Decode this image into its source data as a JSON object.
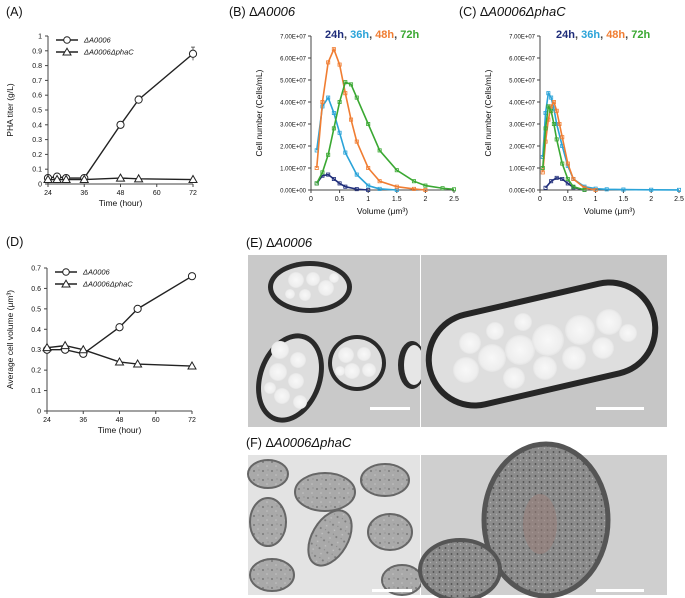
{
  "panels": {
    "A": {
      "label": "(A)"
    },
    "B": {
      "label": "(B)",
      "title_prefix": "Δ",
      "title_main": "A0006"
    },
    "C": {
      "label": "(C)",
      "title_prefix": "Δ",
      "title_main": "A0006ΔphaC"
    },
    "D": {
      "label": "(D)"
    },
    "E": {
      "label": "(E)",
      "title_prefix": "Δ",
      "title_main": "A0006"
    },
    "F": {
      "label": "(F)",
      "title_prefix": "Δ",
      "title_main": "A0006ΔphaC"
    }
  },
  "timepoints_legend": [
    {
      "label": "24h",
      "color": "#1f2d7a"
    },
    {
      "label": "36h",
      "color": "#2aa3d8"
    },
    {
      "label": "48h",
      "color": "#f07d32"
    },
    {
      "label": "72h",
      "color": "#3aa832"
    }
  ],
  "chart_data": [
    {
      "id": "A",
      "type": "line",
      "xlabel": "Time (hour)",
      "ylabel": "PHA titer (g/L)",
      "xlim": [
        24,
        72
      ],
      "ylim": [
        0,
        1
      ],
      "xticks": [
        24,
        36,
        48,
        60,
        72
      ],
      "yticks": [
        0,
        0.1,
        0.2,
        0.3,
        0.4,
        0.5,
        0.6,
        0.7,
        0.8,
        0.9,
        1
      ],
      "legend_position": "top-left",
      "series": [
        {
          "name": "ΔA0006",
          "marker": "circle",
          "x": [
            24,
            27,
            30,
            36,
            48,
            54,
            72
          ],
          "y": [
            0.04,
            0.05,
            0.04,
            0.04,
            0.4,
            0.57,
            0.88
          ],
          "err": [
            0,
            0,
            0,
            0,
            0.01,
            0.025,
            0.045
          ]
        },
        {
          "name": "ΔA0006ΔphaC",
          "marker": "triangle",
          "x": [
            24,
            27,
            30,
            36,
            48,
            54,
            72
          ],
          "y": [
            0.03,
            0.03,
            0.03,
            0.03,
            0.04,
            0.035,
            0.03
          ],
          "err": [
            0,
            0,
            0,
            0,
            0,
            0,
            0
          ]
        }
      ]
    },
    {
      "id": "B",
      "type": "line",
      "xlabel": "Volume (μm³)",
      "ylabel": "Cell number (Cells/mL)",
      "xlim": [
        0,
        2.5
      ],
      "ylim": [
        0,
        70000000
      ],
      "xticks": [
        0,
        0.5,
        1,
        1.5,
        2,
        2.5
      ],
      "yticks": [
        "0.00E+00",
        "1.00E+07",
        "2.00E+07",
        "3.00E+07",
        "4.00E+07",
        "5.00E+07",
        "6.00E+07",
        "7.00E+07"
      ],
      "series": [
        {
          "name": "24h",
          "x": [
            0.1,
            0.2,
            0.3,
            0.4,
            0.5,
            0.6,
            0.8,
            1.0
          ],
          "y": [
            3000000,
            6500000,
            7000000,
            5000000,
            3000000,
            1500000,
            400000,
            0
          ]
        },
        {
          "name": "36h",
          "x": [
            0.1,
            0.2,
            0.3,
            0.4,
            0.5,
            0.6,
            0.8,
            1.0,
            1.2,
            1.5
          ],
          "y": [
            18000000,
            38000000,
            42000000,
            35000000,
            26000000,
            17000000,
            7000000,
            2000000,
            500000,
            0
          ]
        },
        {
          "name": "48h",
          "x": [
            0.1,
            0.2,
            0.3,
            0.4,
            0.5,
            0.6,
            0.7,
            0.8,
            1.0,
            1.2,
            1.5,
            1.8,
            2.0
          ],
          "y": [
            10000000,
            40000000,
            58000000,
            64000000,
            57000000,
            44000000,
            32000000,
            22000000,
            10000000,
            4000000,
            1500000,
            500000,
            0
          ]
        },
        {
          "name": "72h",
          "x": [
            0.1,
            0.2,
            0.3,
            0.4,
            0.5,
            0.6,
            0.7,
            0.8,
            1.0,
            1.2,
            1.5,
            1.8,
            2.0,
            2.3,
            2.5
          ],
          "y": [
            3000000,
            8000000,
            16000000,
            28000000,
            40000000,
            49000000,
            48000000,
            42000000,
            30000000,
            18000000,
            9000000,
            4000000,
            2000000,
            800000,
            300000
          ]
        }
      ]
    },
    {
      "id": "C",
      "type": "line",
      "xlabel": "Volume (μm³)",
      "ylabel": "Cell number (Cells/mL)",
      "xlim": [
        0,
        2.5
      ],
      "ylim": [
        0,
        70000000
      ],
      "xticks": [
        0,
        0.5,
        1,
        1.5,
        2,
        2.5
      ],
      "yticks": [
        "0.00E+00",
        "1.00E+07",
        "2.00E+07",
        "3.00E+07",
        "4.00E+07",
        "5.00E+07",
        "6.00E+07",
        "7.00E+07"
      ],
      "series": [
        {
          "name": "24h",
          "x": [
            0.1,
            0.2,
            0.3,
            0.4,
            0.5,
            0.6,
            0.8
          ],
          "y": [
            1000000,
            4000000,
            5500000,
            5000000,
            3000000,
            1200000,
            0
          ]
        },
        {
          "name": "36h",
          "x": [
            0.05,
            0.1,
            0.15,
            0.2,
            0.25,
            0.3,
            0.4,
            0.5,
            0.6,
            0.8,
            1.0,
            1.2,
            1.5,
            2.0,
            2.5
          ],
          "y": [
            15000000,
            35000000,
            44000000,
            42000000,
            37000000,
            30000000,
            20000000,
            11000000,
            5000000,
            1500000,
            600000,
            300000,
            200000,
            100000,
            50000
          ]
        },
        {
          "name": "48h",
          "x": [
            0.05,
            0.1,
            0.15,
            0.2,
            0.25,
            0.3,
            0.35,
            0.4,
            0.5,
            0.6,
            0.8,
            1.0
          ],
          "y": [
            8000000,
            22000000,
            32000000,
            38000000,
            40000000,
            36000000,
            30000000,
            24000000,
            12000000,
            5000000,
            1000000,
            0
          ]
        },
        {
          "name": "72h",
          "x": [
            0.05,
            0.1,
            0.15,
            0.2,
            0.25,
            0.3,
            0.4,
            0.5,
            0.6,
            0.8
          ],
          "y": [
            10000000,
            28000000,
            38000000,
            36000000,
            30000000,
            23000000,
            12000000,
            5000000,
            1500000,
            0
          ]
        }
      ]
    },
    {
      "id": "D",
      "type": "line",
      "xlabel": "Time (hour)",
      "ylabel": "Average cell volume (μm³)",
      "xlim": [
        24,
        72
      ],
      "ylim": [
        0,
        0.7
      ],
      "xticks": [
        24,
        36,
        48,
        60,
        72
      ],
      "yticks": [
        0,
        0.1,
        0.2,
        0.3,
        0.4,
        0.5,
        0.6,
        0.7
      ],
      "legend_position": "top-left",
      "series": [
        {
          "name": "ΔA0006",
          "marker": "circle",
          "x": [
            24,
            30,
            36,
            48,
            54,
            72
          ],
          "y": [
            0.3,
            0.3,
            0.28,
            0.41,
            0.5,
            0.66
          ],
          "err": [
            0,
            0,
            0,
            0.01,
            0.015,
            0.005
          ]
        },
        {
          "name": "ΔA0006ΔphaC",
          "marker": "triangle",
          "x": [
            24,
            30,
            36,
            48,
            54,
            72
          ],
          "y": [
            0.31,
            0.32,
            0.3,
            0.24,
            0.23,
            0.22
          ],
          "err": [
            0,
            0,
            0,
            0,
            0,
            0
          ]
        }
      ]
    }
  ]
}
